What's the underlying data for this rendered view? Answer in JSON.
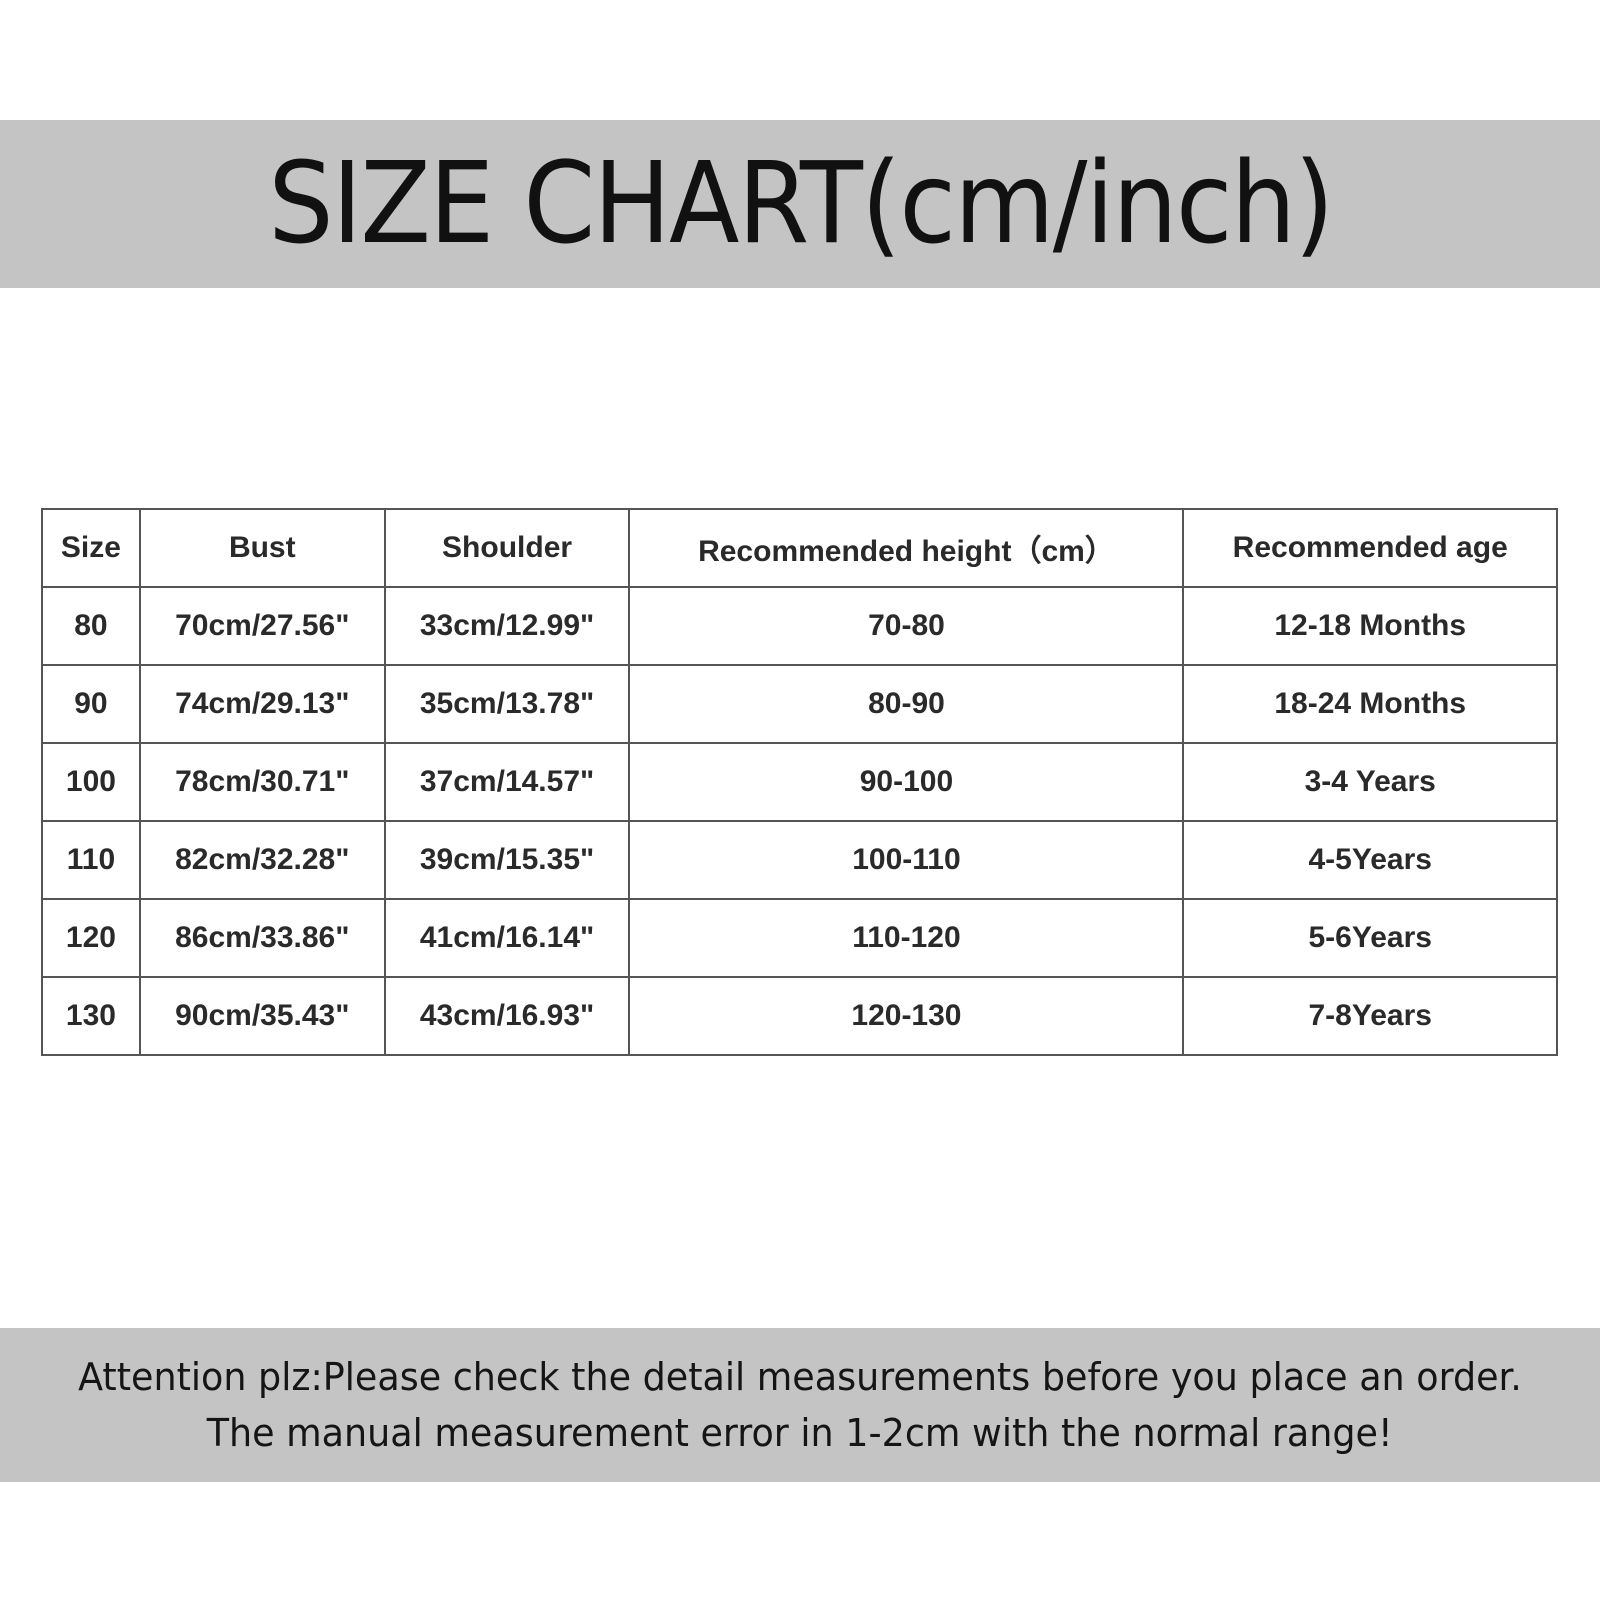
{
  "title": "SIZE CHART(cm/inch)",
  "table": {
    "headers": [
      "Size",
      "Bust",
      "Shoulder",
      "Recommended height（cm）",
      "Recommended age"
    ],
    "rows": [
      [
        "80",
        "70cm/27.56\"",
        "33cm/12.99\"",
        "70-80",
        "12-18 Months"
      ],
      [
        "90",
        "74cm/29.13\"",
        "35cm/13.78\"",
        "80-90",
        "18-24 Months"
      ],
      [
        "100",
        "78cm/30.71\"",
        "37cm/14.57\"",
        "90-100",
        "3-4 Years"
      ],
      [
        "110",
        "82cm/32.28\"",
        "39cm/15.35\"",
        "100-110",
        "4-5Years"
      ],
      [
        "120",
        "86cm/33.86\"",
        "41cm/16.14\"",
        "110-120",
        "5-6Years"
      ],
      [
        "130",
        "90cm/35.43\"",
        "43cm/16.93\"",
        "120-130",
        "7-8Years"
      ]
    ]
  },
  "note": {
    "line1": "Attention plz:Please check the detail measurements before you place an order.",
    "line2": "The manual measurement error in 1-2cm with the normal range!"
  },
  "colors": {
    "band": "#c4c4c4",
    "border": "#555555",
    "text": "#2a2a2a"
  }
}
